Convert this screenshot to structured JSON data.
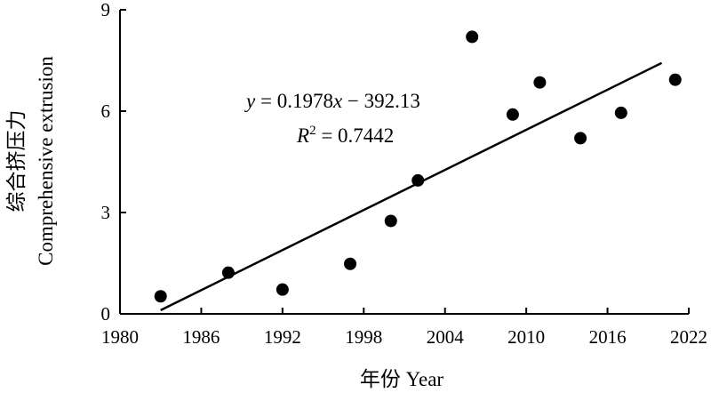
{
  "chart_data": {
    "type": "scatter",
    "xlabel": "年份 Year",
    "ylabel_cn": "综合挤压力",
    "ylabel_en": "Comprehensive extrusion",
    "xlim": [
      1980,
      2022
    ],
    "ylim": [
      0,
      9
    ],
    "xticks": [
      1980,
      1986,
      1992,
      1998,
      2004,
      2010,
      2016,
      2022
    ],
    "yticks": [
      0,
      3,
      6,
      9
    ],
    "grid": false,
    "series": [
      {
        "points": [
          {
            "x": 1983,
            "y": 0.52
          },
          {
            "x": 1988,
            "y": 1.22
          },
          {
            "x": 1992,
            "y": 0.72
          },
          {
            "x": 1997,
            "y": 1.48
          },
          {
            "x": 2000,
            "y": 2.75
          },
          {
            "x": 2002,
            "y": 3.95
          },
          {
            "x": 2006,
            "y": 8.2
          },
          {
            "x": 2009,
            "y": 5.9
          },
          {
            "x": 2011,
            "y": 6.85
          },
          {
            "x": 2014,
            "y": 5.2
          },
          {
            "x": 2017,
            "y": 5.95
          },
          {
            "x": 2021,
            "y": 6.93
          }
        ]
      }
    ],
    "trendline": {
      "slope": 0.1978,
      "intercept": -392.13,
      "x_start": 1983,
      "x_end": 2020,
      "equation_parts": {
        "y": "y",
        "mid": " = 0.1978",
        "x": "x",
        "rest": " − 392.13"
      },
      "r2_parts": {
        "R": "R",
        "sup": "2",
        "rest": " = 0.7442"
      }
    }
  }
}
